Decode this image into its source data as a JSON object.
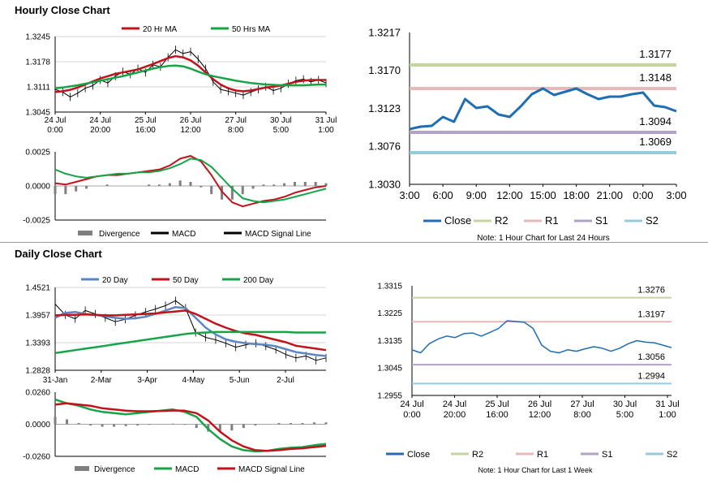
{
  "sections": {
    "hourly_title": "Hourly Close Chart",
    "daily_title": "Daily Close Chart"
  },
  "colors": {
    "ma_short": "#c0141c",
    "ma_long": "#17a347",
    "ma_200": "#17a347",
    "ma_20d": "#5b86c2",
    "close_blue": "#1f6eb4",
    "r2": "#c3d69b",
    "r1": "#e6b9b8",
    "s1": "#b3a2c7",
    "s2": "#93cddd",
    "divergence": "#7f7f7f"
  },
  "chart_data": [
    {
      "id": "hourly_price",
      "type": "line",
      "title": "",
      "legend": [
        "20 Hr MA",
        "50 Hrs MA"
      ],
      "y_ticks": [
        "1.3245",
        "1.3178",
        "1.3111",
        "1.3045"
      ],
      "ylim": [
        1.3045,
        1.3245
      ],
      "x_ticks": [
        [
          "24 Jul",
          "0:00"
        ],
        [
          "24 Jul",
          "20:00"
        ],
        [
          "25 Jul",
          "16:00"
        ],
        [
          "26 Jul",
          "12:00"
        ],
        [
          "27 Jul",
          "8:00"
        ],
        [
          "30 Jul",
          "5:00"
        ],
        [
          "31 Jul",
          "1:00"
        ]
      ],
      "series": [
        {
          "name": "Close",
          "values": [
            1.3105,
            1.3098,
            1.3085,
            1.3095,
            1.3108,
            1.3115,
            1.313,
            1.3122,
            1.314,
            1.3152,
            1.3145,
            1.316,
            1.315,
            1.317,
            1.3165,
            1.319,
            1.321,
            1.32,
            1.3205,
            1.3185,
            1.316,
            1.3125,
            1.3105,
            1.31,
            1.3095,
            1.309,
            1.3098,
            1.3105,
            1.3112,
            1.3102,
            1.3108,
            1.312,
            1.3128,
            1.3132,
            1.3125,
            1.313,
            1.3122
          ]
        },
        {
          "name": "20 Hr MA",
          "values": [
            1.3098,
            1.31,
            1.3104,
            1.311,
            1.3118,
            1.3126,
            1.3134,
            1.314,
            1.3146,
            1.315,
            1.3154,
            1.3158,
            1.3165,
            1.3172,
            1.318,
            1.3188,
            1.3193,
            1.319,
            1.3182,
            1.3168,
            1.315,
            1.3132,
            1.3118,
            1.3108,
            1.3102,
            1.31,
            1.3102,
            1.3106,
            1.311,
            1.3112,
            1.3115,
            1.312,
            1.3125,
            1.3128,
            1.313,
            1.313,
            1.313
          ]
        },
        {
          "name": "50 Hrs MA",
          "values": [
            1.3108,
            1.311,
            1.3113,
            1.3116,
            1.312,
            1.3124,
            1.3128,
            1.3132,
            1.3136,
            1.314,
            1.3145,
            1.315,
            1.3155,
            1.316,
            1.3164,
            1.3167,
            1.3168,
            1.3166,
            1.316,
            1.3152,
            1.3145,
            1.314,
            1.3136,
            1.3132,
            1.3128,
            1.3125,
            1.3122,
            1.312,
            1.3118,
            1.3117,
            1.3116,
            1.3116,
            1.3116,
            1.3116,
            1.3117,
            1.3118,
            1.3118
          ]
        }
      ]
    },
    {
      "id": "hourly_macd",
      "type": "line",
      "legend": [
        "Divergence",
        "MACD",
        "MACD Signal Line"
      ],
      "y_ticks": [
        "0.0025",
        "0.0000",
        "-0.0025"
      ],
      "ylim": [
        -0.0025,
        0.0025
      ],
      "series": [
        {
          "name": "MACD",
          "values": [
            0.0002,
            0.0001,
            0.0003,
            0.0005,
            0.0007,
            0.0008,
            0.0008,
            0.0009,
            0.001,
            0.0011,
            0.0012,
            0.0015,
            0.002,
            0.0022,
            0.0018,
            0.0008,
            -0.0004,
            -0.0012,
            -0.0015,
            -0.0013,
            -0.0011,
            -0.001,
            -0.0008,
            -0.0005,
            -0.0003,
            -0.0001,
            0.0
          ]
        },
        {
          "name": "MACD Signal Line",
          "values": [
            0.0012,
            0.0009,
            0.0007,
            0.0006,
            0.0007,
            0.0008,
            0.0009,
            0.0009,
            0.001,
            0.001,
            0.0011,
            0.0013,
            0.0016,
            0.002,
            0.0019,
            0.0014,
            0.0006,
            -0.0002,
            -0.0009,
            -0.0011,
            -0.0012,
            -0.0011,
            -0.001,
            -0.0008,
            -0.0006,
            -0.0004,
            -0.0002
          ]
        },
        {
          "name": "Divergence",
          "values": [
            -0.0006,
            -0.0006,
            -0.0004,
            -0.0002,
            0.0,
            0.0001,
            0.0,
            0.0,
            0.0,
            0.0001,
            0.0001,
            0.0002,
            0.0004,
            0.0003,
            -0.0001,
            -0.0006,
            -0.001,
            -0.001,
            -0.0006,
            -0.0002,
            0.0001,
            0.0001,
            0.0002,
            0.0003,
            0.0003,
            0.0003,
            0.0002
          ]
        }
      ]
    },
    {
      "id": "hourly_24h",
      "type": "line",
      "note": "Note: 1 Hour Chart for Last 24 Hours",
      "y_ticks": [
        "1.3217",
        "1.3170",
        "1.3123",
        "1.3076",
        "1.3030"
      ],
      "ylim": [
        1.303,
        1.3217
      ],
      "x_ticks": [
        "3:00",
        "6:00",
        "9:00",
        "12:00",
        "15:00",
        "18:00",
        "21:00",
        "0:00",
        "3:00"
      ],
      "levels": [
        {
          "name": "R2",
          "value": 1.3177,
          "label": "1.3177"
        },
        {
          "name": "R1",
          "value": 1.3148,
          "label": "1.3148"
        },
        {
          "name": "S1",
          "value": 1.3094,
          "label": "1.3094"
        },
        {
          "name": "S2",
          "value": 1.3069,
          "label": "1.3069"
        }
      ],
      "legend": [
        "Close",
        "R2",
        "R1",
        "S1",
        "S2"
      ],
      "series": [
        {
          "name": "Close",
          "values": [
            1.3098,
            1.3101,
            1.3102,
            1.3113,
            1.3107,
            1.3135,
            1.3124,
            1.3126,
            1.3116,
            1.3113,
            1.3126,
            1.3141,
            1.3148,
            1.314,
            1.3144,
            1.3148,
            1.3141,
            1.3135,
            1.3138,
            1.3138,
            1.3141,
            1.3143,
            1.3127,
            1.3125,
            1.312
          ]
        }
      ]
    },
    {
      "id": "daily_price",
      "type": "line",
      "legend": [
        "20 Day",
        "50 Day",
        "200 Day"
      ],
      "y_ticks": [
        "1.4521",
        "1.3957",
        "1.3393",
        "1.2828"
      ],
      "ylim": [
        1.2828,
        1.4521
      ],
      "x_ticks": [
        "31-Jan",
        "2-Mar",
        "3-Apr",
        "4-May",
        "5-Jun",
        "2-Jul"
      ],
      "series": [
        {
          "name": "Close",
          "values": [
            1.418,
            1.396,
            1.388,
            1.405,
            1.398,
            1.39,
            1.382,
            1.387,
            1.395,
            1.402,
            1.408,
            1.415,
            1.425,
            1.41,
            1.36,
            1.35,
            1.345,
            1.338,
            1.33,
            1.335,
            1.338,
            1.332,
            1.325,
            1.315,
            1.308,
            1.312,
            1.303,
            1.308
          ]
        },
        {
          "name": "20 Day",
          "values": [
            1.39,
            1.4,
            1.402,
            1.398,
            1.396,
            1.393,
            1.39,
            1.388,
            1.389,
            1.392,
            1.398,
            1.405,
            1.412,
            1.41,
            1.39,
            1.37,
            1.356,
            1.346,
            1.341,
            1.338,
            1.336,
            1.335,
            1.332,
            1.326,
            1.32,
            1.317,
            1.314,
            1.312
          ]
        },
        {
          "name": "50 Day",
          "values": [
            1.395,
            1.396,
            1.396,
            1.397,
            1.396,
            1.395,
            1.395,
            1.396,
            1.397,
            1.398,
            1.399,
            1.401,
            1.403,
            1.405,
            1.398,
            1.388,
            1.378,
            1.37,
            1.363,
            1.358,
            1.355,
            1.35,
            1.345,
            1.34,
            1.333,
            1.33,
            1.327,
            1.324
          ]
        },
        {
          "name": "200 Day",
          "values": [
            1.318,
            1.321,
            1.324,
            1.327,
            1.33,
            1.333,
            1.336,
            1.339,
            1.342,
            1.345,
            1.348,
            1.351,
            1.354,
            1.357,
            1.359,
            1.36,
            1.361,
            1.361,
            1.361,
            1.361,
            1.361,
            1.361,
            1.361,
            1.361,
            1.36,
            1.36,
            1.36,
            1.36
          ]
        }
      ]
    },
    {
      "id": "daily_macd",
      "type": "line",
      "legend": [
        "Divergence",
        "MACD",
        "MACD Signal Line"
      ],
      "y_ticks": [
        "0.0260",
        "0.0000",
        "-0.0260"
      ],
      "ylim": [
        -0.026,
        0.026
      ],
      "series": [
        {
          "name": "MACD",
          "values": [
            0.02,
            0.017,
            0.015,
            0.012,
            0.01,
            0.009,
            0.008,
            0.009,
            0.01,
            0.011,
            0.012,
            0.01,
            0.006,
            -0.004,
            -0.012,
            -0.018,
            -0.021,
            -0.022,
            -0.0215,
            -0.02,
            -0.019,
            -0.0185,
            -0.017,
            -0.016
          ]
        },
        {
          "name": "MACD Signal Line",
          "values": [
            0.016,
            0.017,
            0.016,
            0.015,
            0.013,
            0.012,
            0.011,
            0.0105,
            0.0105,
            0.0108,
            0.0112,
            0.011,
            0.009,
            0.003,
            -0.006,
            -0.013,
            -0.018,
            -0.021,
            -0.0215,
            -0.021,
            -0.02,
            -0.0195,
            -0.0185,
            -0.0175
          ]
        },
        {
          "name": "Divergence",
          "values": [
            0.006,
            0.004,
            0.001,
            -0.001,
            -0.002,
            -0.002,
            -0.0015,
            -0.001,
            -0.0005,
            0.0,
            0.0005,
            -0.0005,
            -0.003,
            -0.006,
            -0.006,
            -0.005,
            -0.003,
            -0.001,
            0.0,
            0.001,
            0.001,
            0.001,
            0.0015,
            0.0015
          ]
        }
      ]
    },
    {
      "id": "daily_week",
      "type": "line",
      "note": "Note: 1 Hour Chart for Last 1 Week",
      "y_ticks": [
        "1.3315",
        "1.3225",
        "1.3135",
        "1.3045",
        "1.2955"
      ],
      "ylim": [
        1.2955,
        1.3315
      ],
      "x_ticks": [
        [
          "24 Jul",
          "0:00"
        ],
        [
          "24 Jul",
          "20:00"
        ],
        [
          "25 Jul",
          "16:00"
        ],
        [
          "26 Jul",
          "12:00"
        ],
        [
          "27 Jul",
          "8:00"
        ],
        [
          "30 Jul",
          "5:00"
        ],
        [
          "31 Jul",
          "1:00"
        ]
      ],
      "levels": [
        {
          "name": "R2",
          "value": 1.3276,
          "label": "1.3276"
        },
        {
          "name": "R1",
          "value": 1.3197,
          "label": "1.3197"
        },
        {
          "name": "S1",
          "value": 1.3056,
          "label": "1.3056"
        },
        {
          "name": "S2",
          "value": 1.2994,
          "label": "1.2994"
        }
      ],
      "legend": [
        "Close",
        "R2",
        "R1",
        "S1",
        "S2"
      ],
      "series": [
        {
          "name": "Close",
          "values": [
            1.3105,
            1.3095,
            1.3125,
            1.314,
            1.315,
            1.3145,
            1.3158,
            1.316,
            1.315,
            1.3162,
            1.3175,
            1.32,
            1.3198,
            1.3195,
            1.3175,
            1.312,
            1.31,
            1.3095,
            1.3105,
            1.31,
            1.3108,
            1.3115,
            1.311,
            1.31,
            1.311,
            1.3125,
            1.3135,
            1.313,
            1.3128,
            1.312,
            1.3112
          ]
        }
      ]
    }
  ]
}
